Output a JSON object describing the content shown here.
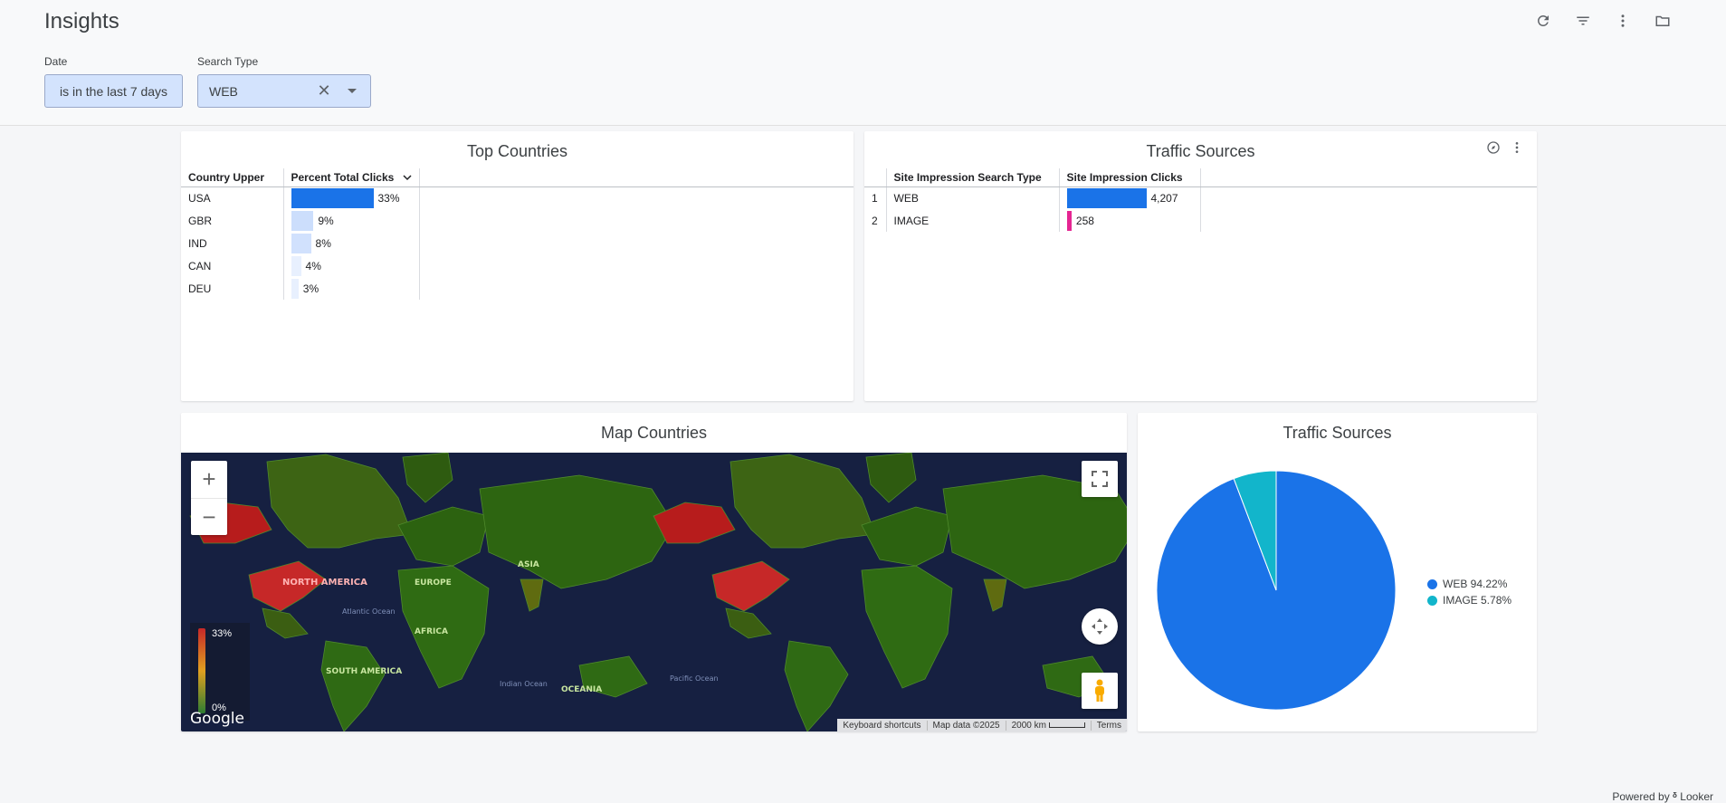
{
  "header": {
    "title": "Insights"
  },
  "filters": {
    "date": {
      "label": "Date",
      "value": "is in the last 7 days"
    },
    "search_type": {
      "label": "Search Type",
      "value": "WEB"
    }
  },
  "top_countries": {
    "title": "Top Countries",
    "col1": "Country Upper",
    "col2": "Percent Total Clicks",
    "rows": [
      {
        "country": "USA",
        "label": "33%",
        "value": 33
      },
      {
        "country": "GBR",
        "label": "9%",
        "value": 9
      },
      {
        "country": "IND",
        "label": "8%",
        "value": 8
      },
      {
        "country": "CAN",
        "label": "4%",
        "value": 4
      },
      {
        "country": "DEU",
        "label": "3%",
        "value": 3
      }
    ],
    "bar_color": "#1a73e8",
    "bar_color_light": "#c6dafc"
  },
  "traffic_table": {
    "title": "Traffic Sources",
    "col1": "Site Impression Search Type",
    "col2": "Site Impression Clicks",
    "rows": [
      {
        "num": "1",
        "type": "WEB",
        "label": "4,207",
        "value": 4207,
        "color": "#1a73e8"
      },
      {
        "num": "2",
        "type": "IMAGE",
        "label": "258",
        "value": 258,
        "color": "#e52592"
      }
    ]
  },
  "map": {
    "title": "Map Countries",
    "legend_max": "33%",
    "legend_min": "0%",
    "labels": {
      "north_america": "NORTH AMERICA",
      "south_america": "SOUTH AMERICA",
      "europe": "EUROPE",
      "africa": "AFRICA",
      "asia": "ASIA",
      "oceania": "OCEANIA",
      "atlantic": "Atlantic Ocean",
      "indian": "Indian Ocean",
      "pacific": "Pacific Ocean"
    },
    "google": "Google",
    "attribution": {
      "shortcuts": "Keyboard shortcuts",
      "data": "Map data ©2025",
      "scale": "2000 km",
      "terms": "Terms"
    }
  },
  "traffic_pie": {
    "title": "Traffic Sources",
    "chart_data": {
      "type": "pie",
      "slices": [
        {
          "name": "WEB",
          "value": 94.22,
          "color": "#1a73e8",
          "label": "WEB 94.22%"
        },
        {
          "name": "IMAGE",
          "value": 5.78,
          "color": "#12b5cb",
          "label": "IMAGE 5.78%"
        }
      ],
      "legend": "right"
    }
  },
  "footer": {
    "powered": "Powered by",
    "brand": "Looker"
  }
}
